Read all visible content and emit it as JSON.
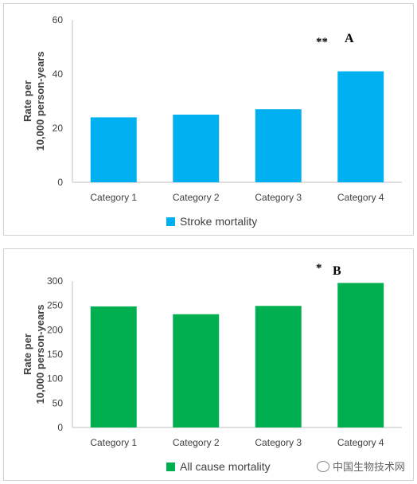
{
  "chart_data": [
    {
      "type": "bar",
      "panel_label": "A",
      "annotation": "**",
      "ylabel_lines": [
        "Rate per",
        "10,000 person-years"
      ],
      "categories": [
        "Category 1",
        "Category 2",
        "Category 3",
        "Category 4"
      ],
      "series": [
        {
          "name": "Stroke mortality",
          "values": [
            24,
            25,
            27,
            41
          ]
        }
      ],
      "ylim": [
        0,
        60
      ],
      "yticks": [
        0,
        20,
        40,
        60
      ],
      "color": "#00B0F0",
      "grid": false,
      "legend_position": "bottom-left"
    },
    {
      "type": "bar",
      "panel_label": "B",
      "annotation": "*",
      "ylabel_lines": [
        "Rate per",
        "10,000 person-years"
      ],
      "categories": [
        "Category 1",
        "Category 2",
        "Category 3",
        "Category 4"
      ],
      "series": [
        {
          "name": "All cause mortality",
          "values": [
            248,
            232,
            249,
            296
          ]
        }
      ],
      "ylim": [
        0,
        300
      ],
      "yticks": [
        0,
        50,
        100,
        150,
        200,
        250,
        300
      ],
      "color": "#00B050",
      "grid": false,
      "legend_position": "bottom-left"
    }
  ],
  "watermark": {
    "text": "中国生物技术网",
    "icon": "wechat-icon"
  }
}
